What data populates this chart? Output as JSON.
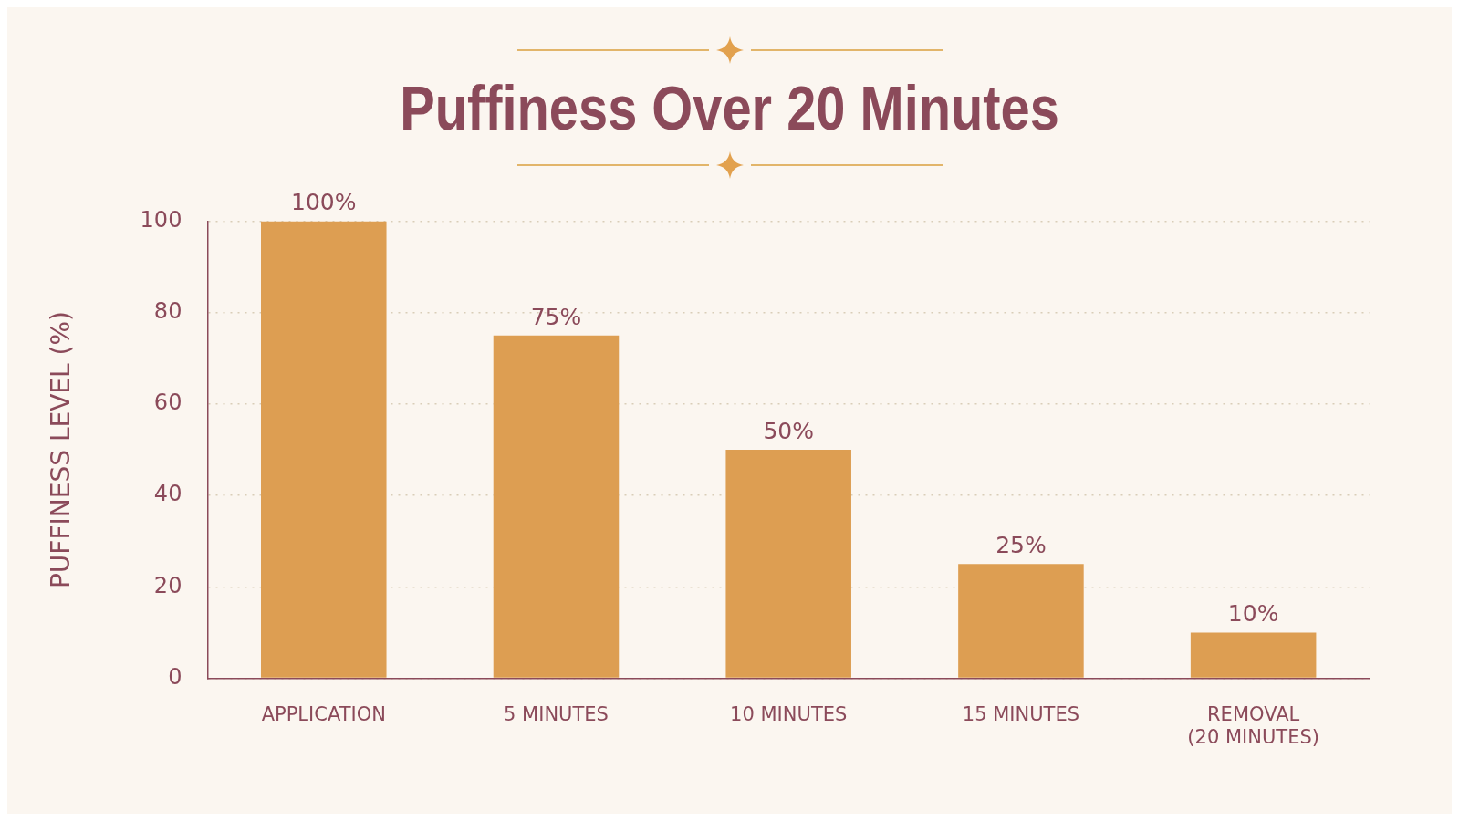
{
  "chart_data": {
    "type": "bar",
    "title": "Puffiness Over 20 Minutes",
    "ylabel": "PUFFINESS LEVEL (%)",
    "categories": [
      "APPLICATION",
      "5 MINUTES",
      "10 MINUTES",
      "15 MINUTES",
      "REMOVAL\n(20 MINUTES)"
    ],
    "values": [
      100,
      75,
      50,
      25,
      10
    ],
    "value_labels": [
      "100%",
      "75%",
      "50%",
      "25%",
      "10%"
    ],
    "color": "#dd9e52",
    "ylim": [
      0,
      100
    ],
    "yticks": [
      0,
      20,
      40,
      60,
      80,
      100
    ],
    "grid": "y",
    "legend": false
  }
}
